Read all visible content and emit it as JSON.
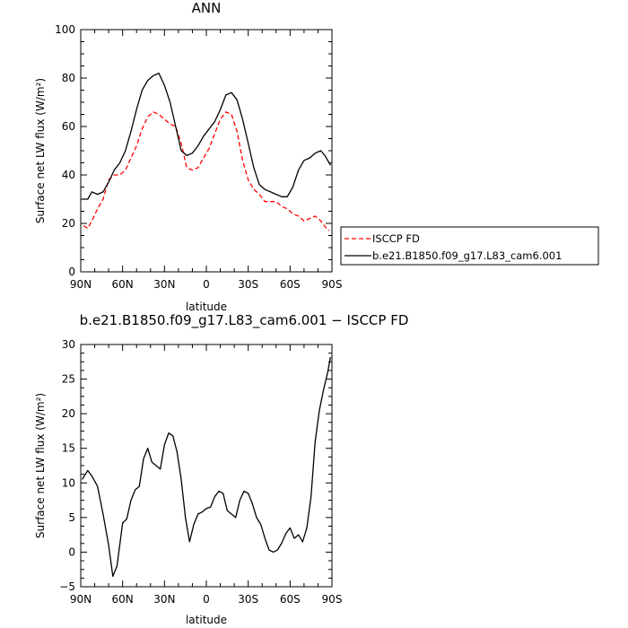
{
  "chart_data": [
    {
      "type": "line",
      "title": "ANN",
      "xlabel": "latitude",
      "ylabel": "Surface net LW flux (W/m²)",
      "ylim": [
        0,
        100
      ],
      "yticks": [
        0,
        20,
        40,
        60,
        80,
        100
      ],
      "xlim": [
        90,
        -90
      ],
      "xticks": [
        90,
        60,
        30,
        0,
        -30,
        -60,
        -90
      ],
      "xtick_labels": [
        "90N",
        "60N",
        "30N",
        "0",
        "30S",
        "60S",
        "90S"
      ],
      "legend_position": "right",
      "series": [
        {
          "name": "ISCCP FD",
          "color": "#ff0000",
          "dash": "dashed",
          "x": [
            88,
            85,
            82,
            78,
            74,
            70,
            66,
            62,
            58,
            54,
            50,
            46,
            42,
            38,
            34,
            30,
            26,
            22,
            18,
            14,
            10,
            6,
            2,
            -2,
            -6,
            -10,
            -14,
            -18,
            -22,
            -26,
            -30,
            -34,
            -38,
            -42,
            -46,
            -50,
            -54,
            -58,
            -62,
            -66,
            -70,
            -74,
            -78,
            -82,
            -86,
            -88
          ],
          "y": [
            19,
            18,
            21,
            26,
            30,
            38,
            40,
            40,
            42,
            47,
            52,
            59,
            64,
            66,
            65,
            63,
            61,
            60,
            53,
            43,
            42,
            43,
            47,
            51,
            57,
            63,
            66,
            65,
            58,
            46,
            38,
            34,
            32,
            29,
            29,
            29,
            27,
            26,
            24,
            23,
            21,
            22,
            23,
            21,
            18,
            17
          ]
        },
        {
          "name": "b.e21.B1850.f09_g17.L83_cam6.001",
          "color": "#000000",
          "dash": "solid",
          "x": [
            89,
            85,
            82,
            78,
            74,
            70,
            66,
            62,
            58,
            54,
            50,
            46,
            42,
            38,
            34,
            30,
            26,
            22,
            18,
            14,
            10,
            6,
            2,
            -2,
            -6,
            -10,
            -14,
            -18,
            -22,
            -26,
            -30,
            -34,
            -38,
            -42,
            -46,
            -50,
            -54,
            -58,
            -62,
            -66,
            -70,
            -74,
            -78,
            -82,
            -85,
            -88,
            -89
          ],
          "y": [
            30,
            30,
            33,
            32,
            33,
            37,
            42,
            45,
            50,
            58,
            67,
            75,
            79,
            81,
            82,
            77,
            70,
            60,
            50,
            48,
            49,
            52,
            56,
            59,
            62,
            67,
            73,
            74,
            71,
            63,
            53,
            43,
            36,
            34,
            33,
            32,
            31,
            31,
            35,
            42,
            46,
            47,
            49,
            50,
            48,
            45,
            44
          ]
        }
      ]
    },
    {
      "type": "line",
      "title": "b.e21.B1850.f09_g17.L83_cam6.001 − ISCCP FD",
      "xlabel": "latitude",
      "ylabel": "Surface net LW flux (W/m²)",
      "ylim": [
        -5,
        30
      ],
      "yticks": [
        -5,
        0,
        5,
        10,
        15,
        20,
        25,
        30
      ],
      "xlim": [
        90,
        -90
      ],
      "xticks": [
        90,
        60,
        30,
        0,
        -30,
        -60,
        -90
      ],
      "xtick_labels": [
        "90N",
        "60N",
        "30N",
        "0",
        "30S",
        "60S",
        "90S"
      ],
      "series": [
        {
          "color": "#000000",
          "dash": "solid",
          "x": [
            89,
            85,
            82,
            78,
            74,
            70,
            67,
            64,
            60,
            57,
            54,
            51,
            48,
            45,
            42,
            39,
            36,
            33,
            30,
            27,
            24,
            21,
            18,
            15,
            12,
            9,
            6,
            3,
            0,
            -3,
            -6,
            -9,
            -12,
            -15,
            -18,
            -21,
            -24,
            -27,
            -30,
            -33,
            -36,
            -39,
            -42,
            -45,
            -48,
            -51,
            -54,
            -57,
            -60,
            -63,
            -66,
            -69,
            -72,
            -75,
            -78,
            -81,
            -84,
            -87,
            -89
          ],
          "y": [
            10.5,
            11.8,
            11,
            9.5,
            5.5,
            1,
            -3.5,
            -2,
            4.2,
            4.8,
            7.5,
            9,
            9.5,
            13.5,
            15,
            13,
            12.5,
            12,
            15.5,
            17.2,
            16.8,
            14.5,
            10.5,
            5,
            1.5,
            4,
            5.5,
            5.8,
            6.3,
            6.5,
            8,
            8.8,
            8.5,
            6,
            5.5,
            5,
            7.5,
            8.8,
            8.5,
            7,
            5,
            4,
            2,
            0.3,
            0,
            0.3,
            1.3,
            2.7,
            3.5,
            2,
            2.5,
            1.5,
            3.5,
            8,
            16,
            20.5,
            23.5,
            26,
            28.2
          ]
        }
      ]
    }
  ]
}
